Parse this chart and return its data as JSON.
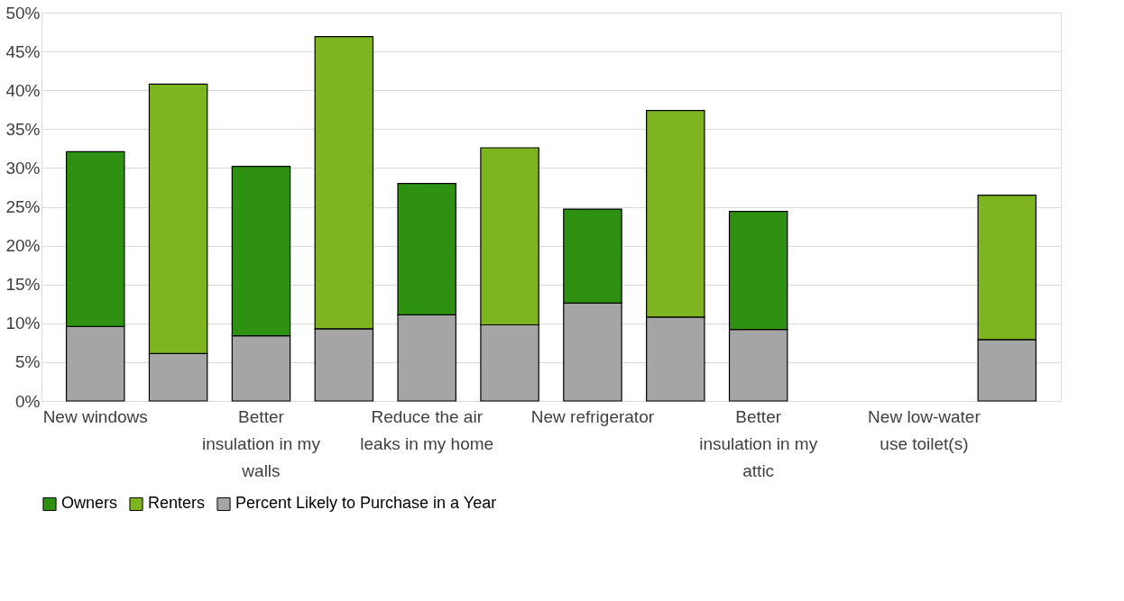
{
  "chart_data": {
    "type": "bar",
    "stacked": true,
    "categories": [
      "New windows",
      null,
      "Better insulation in my walls",
      null,
      "Reduce the air leaks in my home",
      null,
      "New refrigerator",
      null,
      "Better insulation in my attic",
      null,
      "New low-water use toilet(s)",
      null
    ],
    "series": [
      {
        "name": "Percent Likely to Purchase in a Year",
        "color": "#a5a5a5",
        "values": [
          9.6,
          6.1,
          8.4,
          9.3,
          11.1,
          9.8,
          12.6,
          10.8,
          9.2,
          null,
          null,
          7.9
        ]
      },
      {
        "name": "Owners",
        "color": "#2e9111",
        "values": [
          22.5,
          null,
          21.8,
          null,
          16.9,
          null,
          12.1,
          null,
          15.2,
          null,
          null,
          null
        ]
      },
      {
        "name": "Renters",
        "color": "#7db41f",
        "values": [
          null,
          34.7,
          null,
          37.6,
          null,
          22.8,
          null,
          26.6,
          null,
          null,
          null,
          18.6
        ]
      }
    ],
    "ylim": [
      0,
      50
    ],
    "yticks": [
      {
        "value": 0,
        "label": "0%"
      },
      {
        "value": 5,
        "label": "5%"
      },
      {
        "value": 10,
        "label": "10%"
      },
      {
        "value": 15,
        "label": "15%"
      },
      {
        "value": 20,
        "label": "20%"
      },
      {
        "value": 25,
        "label": "25%"
      },
      {
        "value": 30,
        "label": "30%"
      },
      {
        "value": 35,
        "label": "35%"
      },
      {
        "value": 40,
        "label": "40%"
      },
      {
        "value": 45,
        "label": "45%"
      },
      {
        "value": 50,
        "label": "50%"
      }
    ],
    "grid": "y",
    "legend": "bottom"
  }
}
